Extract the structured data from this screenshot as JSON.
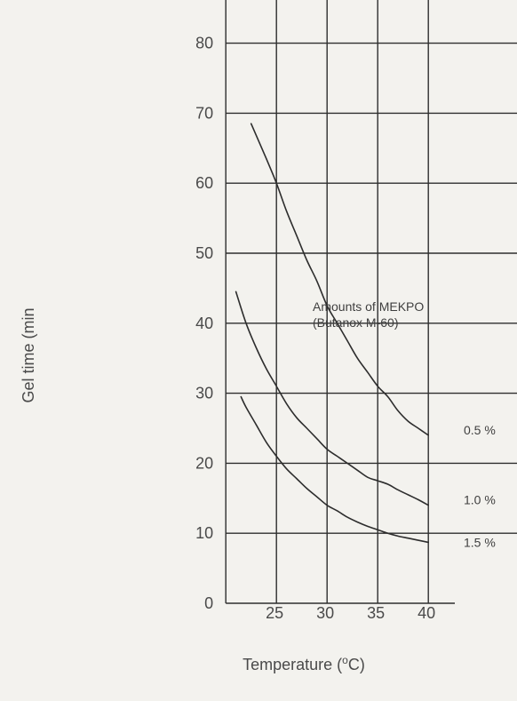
{
  "chart_data": {
    "type": "line",
    "xlabel": "Temperature (",
    "xlabel_superscript": "o",
    "xlabel_suffix": "C)",
    "ylabel": "Gel time (min",
    "xlim": [
      20,
      40.5
    ],
    "ylim": [
      0,
      90
    ],
    "x_ticks": [
      25,
      30,
      35,
      40
    ],
    "x_grid": [
      20,
      25,
      30,
      35,
      40
    ],
    "y_ticks": [
      0,
      10,
      20,
      30,
      40,
      50,
      60,
      70,
      80
    ],
    "grid": true,
    "annotation": [
      "Amounts of MEKPO",
      "(Butanox M-60)"
    ],
    "series": [
      {
        "name": "0.5 %",
        "x": [
          22.5,
          24,
          25,
          26,
          27,
          28,
          29,
          30,
          31,
          32,
          33,
          34,
          35,
          36,
          37,
          38,
          39,
          40
        ],
        "y": [
          68.5,
          63.5,
          60,
          56,
          52.5,
          49,
          46,
          42.5,
          40,
          37.5,
          35,
          33,
          31,
          29.5,
          27.5,
          26,
          25,
          24
        ]
      },
      {
        "name": "1.0 %",
        "x": [
          21,
          22,
          23,
          24,
          25,
          26,
          27,
          28,
          29,
          30,
          31,
          32,
          33,
          34,
          35,
          36,
          37,
          38,
          39,
          40
        ],
        "y": [
          44.5,
          40,
          36.5,
          33.5,
          31,
          28.5,
          26.5,
          25,
          23.5,
          22,
          21,
          20,
          19,
          18,
          17.5,
          17,
          16.2,
          15.5,
          14.8,
          14
        ]
      },
      {
        "name": "1.5 %",
        "x": [
          21.5,
          22,
          23,
          24,
          25,
          26,
          27,
          28,
          29,
          30,
          31,
          32,
          33,
          34,
          35,
          36,
          37,
          38,
          39,
          40
        ],
        "y": [
          29.5,
          28,
          25.5,
          23,
          21,
          19.2,
          17.8,
          16.4,
          15.2,
          14,
          13.2,
          12.3,
          11.6,
          11,
          10.5,
          10,
          9.6,
          9.3,
          9,
          8.7
        ]
      }
    ]
  },
  "colors": {
    "background": "#f3f2ee",
    "grid": "#2e2e2e",
    "curve": "#2d2d2d",
    "text": "#4a4a4a"
  }
}
